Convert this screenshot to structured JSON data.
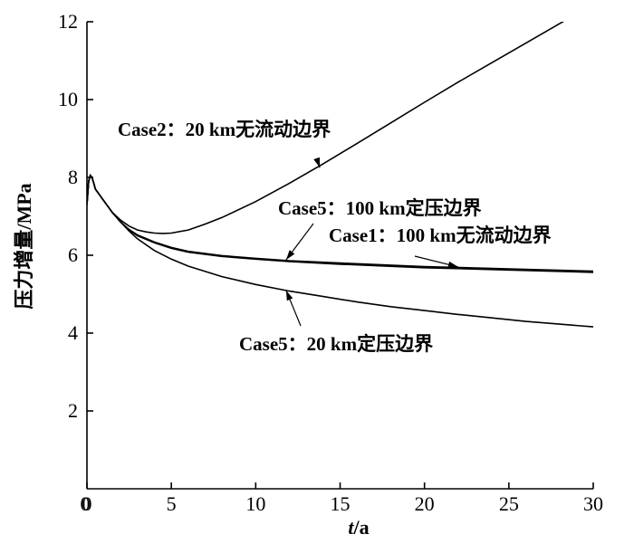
{
  "chart_data": {
    "type": "line",
    "xlabel_italic": "t",
    "xlabel_rest": "/a",
    "ylabel": "压力增量/MPa",
    "xlim": [
      0,
      30
    ],
    "ylim": [
      0,
      12
    ],
    "xticks": [
      0,
      5,
      10,
      15,
      20,
      25,
      30
    ],
    "yticks": [
      2,
      4,
      6,
      8,
      10,
      12
    ],
    "grid": false,
    "series": [
      {
        "name": "Case2：20 km无流动边界",
        "x": [
          0,
          0.1,
          0.2,
          0.3,
          0.4,
          0.5,
          1,
          1.5,
          2,
          2.5,
          3,
          3.5,
          4,
          4.5,
          5,
          6,
          7,
          8,
          10,
          12,
          14,
          16,
          18,
          20,
          22,
          24,
          26,
          28,
          30
        ],
        "y": [
          7.3,
          7.9,
          8.05,
          8.0,
          7.85,
          7.7,
          7.4,
          7.1,
          6.9,
          6.75,
          6.65,
          6.6,
          6.57,
          6.56,
          6.57,
          6.65,
          6.8,
          6.97,
          7.38,
          7.85,
          8.35,
          8.87,
          9.4,
          9.93,
          10.45,
          10.95,
          11.45,
          11.95,
          12.45
        ]
      },
      {
        "name": "Case5：100 km定压边界",
        "x": [
          0,
          0.1,
          0.2,
          0.3,
          0.4,
          0.5,
          1,
          1.5,
          2,
          2.5,
          3,
          4,
          5,
          6,
          8,
          10,
          12,
          15,
          20,
          25,
          30
        ],
        "y": [
          7.3,
          7.9,
          8.05,
          8.0,
          7.85,
          7.7,
          7.4,
          7.1,
          6.85,
          6.65,
          6.5,
          6.32,
          6.18,
          6.08,
          5.97,
          5.9,
          5.84,
          5.77,
          5.68,
          5.62,
          5.56
        ]
      },
      {
        "name": "Case1：100 km无流动边界",
        "x": [
          0,
          0.1,
          0.2,
          0.3,
          0.4,
          0.5,
          1,
          1.5,
          2,
          2.5,
          3,
          4,
          5,
          6,
          8,
          10,
          12,
          15,
          20,
          25,
          30
        ],
        "y": [
          7.3,
          7.9,
          8.05,
          8.0,
          7.85,
          7.7,
          7.4,
          7.1,
          6.85,
          6.66,
          6.52,
          6.34,
          6.2,
          6.1,
          5.99,
          5.92,
          5.86,
          5.8,
          5.71,
          5.65,
          5.59
        ]
      },
      {
        "name": "Case5：20 km定压边界",
        "x": [
          0,
          0.1,
          0.2,
          0.3,
          0.4,
          0.5,
          1,
          1.5,
          2,
          2.5,
          3,
          4,
          5,
          6,
          8,
          10,
          12,
          14,
          16,
          18,
          20,
          22,
          24,
          26,
          28,
          30
        ],
        "y": [
          7.3,
          7.9,
          8.05,
          8.0,
          7.85,
          7.7,
          7.4,
          7.1,
          6.85,
          6.62,
          6.42,
          6.12,
          5.9,
          5.72,
          5.45,
          5.25,
          5.08,
          4.94,
          4.8,
          4.68,
          4.58,
          4.48,
          4.39,
          4.3,
          4.23,
          4.16
        ]
      }
    ],
    "annotations": [
      {
        "text": "Case2：20 km无流动边界",
        "arrow_to": [
          13.8,
          8.25
        ]
      },
      {
        "text": "Case5：100 km定压边界",
        "arrow_to": [
          11.8,
          5.88
        ]
      },
      {
        "text": "Case1：100 km无流动边界",
        "arrow_to": [
          22.0,
          5.7
        ]
      },
      {
        "text": "Case5：20 km定压边界",
        "arrow_to": [
          11.8,
          5.1
        ]
      }
    ]
  }
}
